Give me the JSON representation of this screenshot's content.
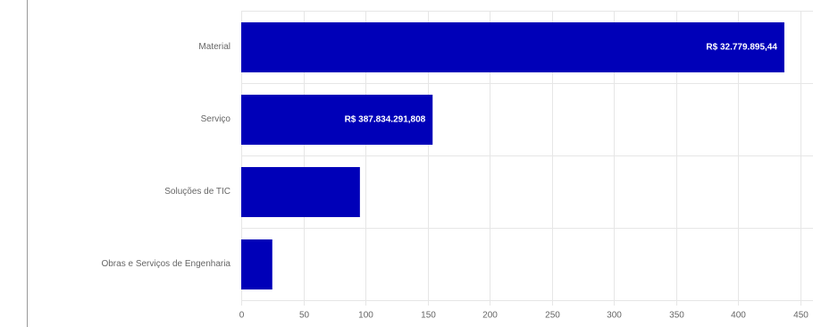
{
  "chart_data": {
    "type": "bar",
    "orientation": "horizontal",
    "categories": [
      "Material",
      "Serviço",
      "Soluções de TIC",
      "Obras e Serviços de Engenharia"
    ],
    "values": [
      437,
      154,
      95.5,
      25
    ],
    "annotations": [
      "R$ 32.779.895,44",
      "R$ 387.834.291,808",
      null,
      null
    ],
    "color": "#0000b8",
    "xlim": [
      0,
      450
    ],
    "xticks": [
      0,
      50,
      100,
      150,
      200,
      250,
      300,
      350,
      400,
      450
    ],
    "grid": true
  }
}
